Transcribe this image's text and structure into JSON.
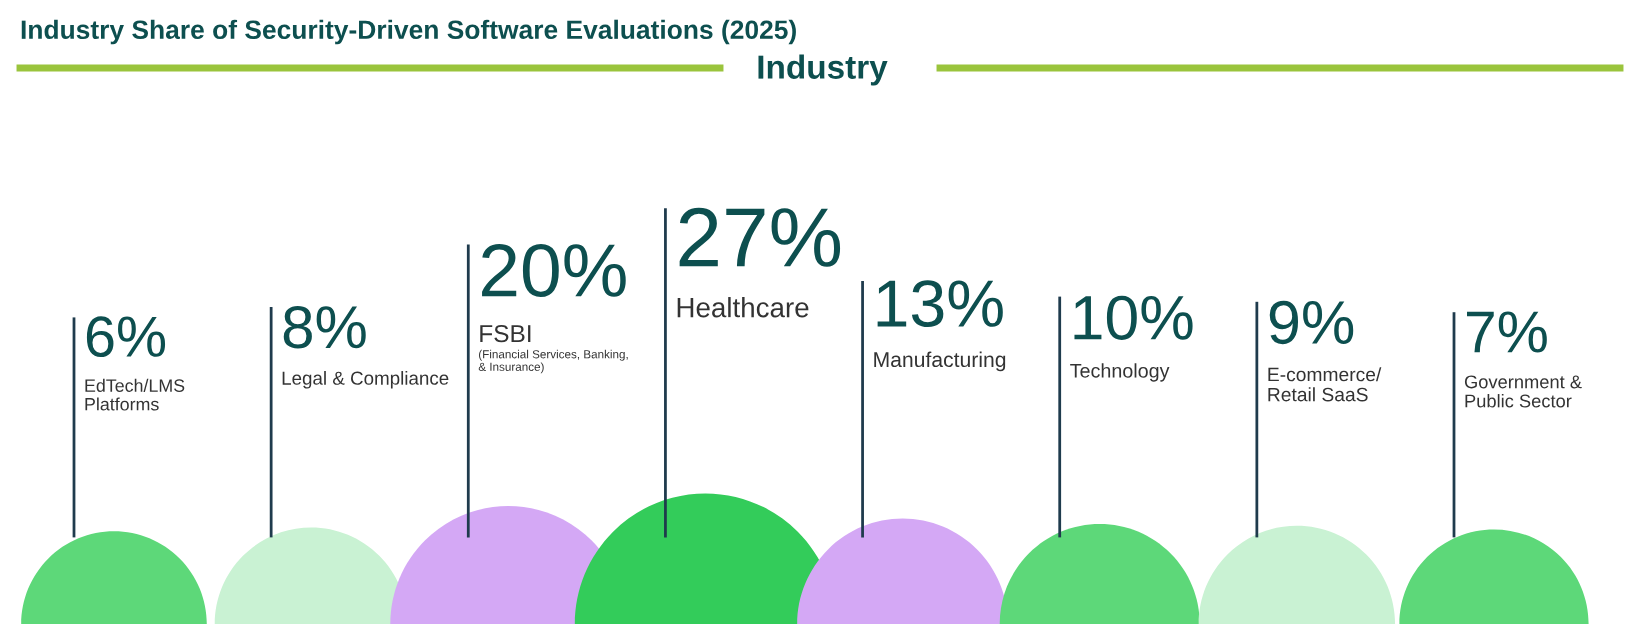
{
  "chart_data": {
    "type": "other",
    "title": "Industry Share of Security-Driven Software Evaluations (2025)",
    "subtitle": "Industry",
    "categories": [
      "EdTech/LMS\nPlatforms",
      "Legal & Compliance",
      "FSBI\n(Financial Services, Banking,\n& Insurance)",
      "Healthcare",
      "Manufacturing",
      "Technology",
      "E-commerce/\nRetail SaaS",
      "Government &\nPublic Sector"
    ],
    "values": [
      6,
      8,
      20,
      27,
      13,
      10,
      9,
      7
    ],
    "value_labels": [
      "6%",
      "8%",
      "20%",
      "27%",
      "13%",
      "10%",
      "9%",
      "7%"
    ],
    "colors": [
      "#5dd879",
      "#c9f2d3",
      "#d4a8f5",
      "#33cc5a",
      "#d4a8f5",
      "#5dd879",
      "#c9f2d3",
      "#5dd879"
    ]
  }
}
